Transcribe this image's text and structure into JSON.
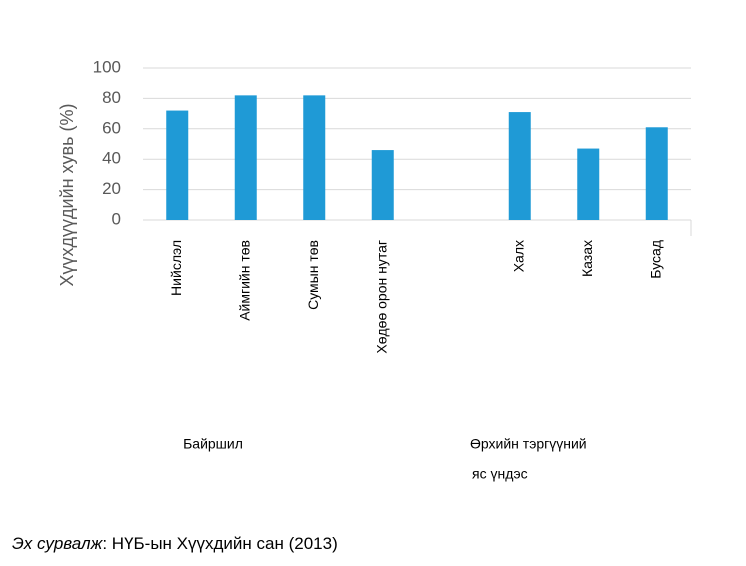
{
  "chart_data": {
    "type": "bar",
    "y_label": "Хүүхдүүдийн хувь (%)",
    "categories": [
      "Нийслэл",
      "Аймгийн төв",
      "Сумын төв",
      "Хөдөө орон нутаг",
      null,
      "Халх",
      "Казах",
      "Бусад"
    ],
    "values": [
      72,
      82,
      82,
      46,
      null,
      71,
      47,
      61
    ],
    "color": "#1f9ad6",
    "ylim": [
      0,
      100
    ],
    "yticks": [
      0,
      20,
      40,
      60,
      80,
      100
    ],
    "grid": true,
    "group_labels": [
      [
        "Байршил"
      ],
      [
        "Өрхийн тэргүүний",
        "яс үндэс"
      ]
    ]
  },
  "source": {
    "label": "Эх сурвалж",
    "text": ": НҮБ-ын Хүүхдийн сан (2013)"
  }
}
